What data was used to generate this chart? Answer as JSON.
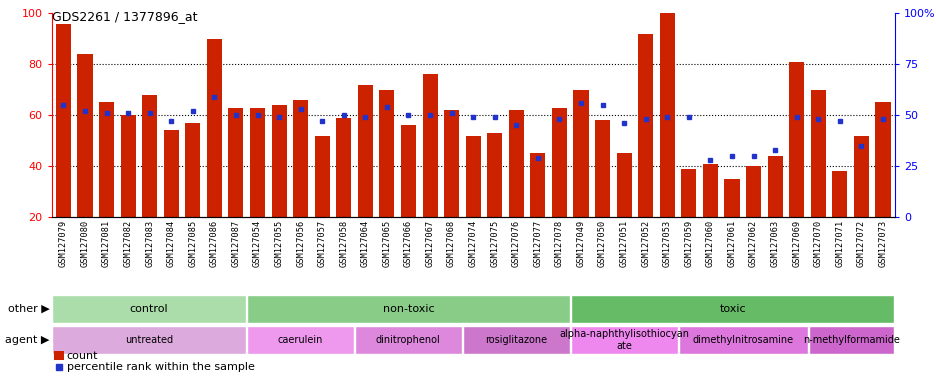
{
  "title": "GDS2261 / 1377896_at",
  "samples": [
    "GSM127079",
    "GSM127080",
    "GSM127081",
    "GSM127082",
    "GSM127083",
    "GSM127084",
    "GSM127085",
    "GSM127086",
    "GSM127087",
    "GSM127054",
    "GSM127055",
    "GSM127056",
    "GSM127057",
    "GSM127058",
    "GSM127064",
    "GSM127065",
    "GSM127066",
    "GSM127067",
    "GSM127068",
    "GSM127074",
    "GSM127075",
    "GSM127076",
    "GSM127077",
    "GSM127078",
    "GSM127049",
    "GSM127050",
    "GSM127051",
    "GSM127052",
    "GSM127053",
    "GSM127059",
    "GSM127060",
    "GSM127061",
    "GSM127062",
    "GSM127063",
    "GSM127069",
    "GSM127070",
    "GSM127071",
    "GSM127072",
    "GSM127073"
  ],
  "counts": [
    96,
    84,
    65,
    60,
    68,
    54,
    57,
    90,
    63,
    63,
    64,
    66,
    52,
    59,
    72,
    70,
    56,
    76,
    62,
    52,
    53,
    62,
    45,
    63,
    70,
    58,
    45,
    92,
    100,
    39,
    41,
    35,
    40,
    44,
    81,
    70,
    38,
    52,
    65
  ],
  "percentiles": [
    55,
    52,
    51,
    51,
    51,
    47,
    52,
    59,
    50,
    50,
    49,
    53,
    47,
    50,
    49,
    54,
    50,
    50,
    51,
    49,
    49,
    45,
    29,
    48,
    56,
    55,
    46,
    48,
    49,
    49,
    28,
    30,
    30,
    33,
    49,
    48,
    47,
    35,
    48
  ],
  "bar_color": "#CC2200",
  "blue_color": "#2233CC",
  "groups_other": [
    {
      "label": "control",
      "start": 0,
      "end": 9,
      "color": "#AADDAA"
    },
    {
      "label": "non-toxic",
      "start": 9,
      "end": 24,
      "color": "#88CC88"
    },
    {
      "label": "toxic",
      "start": 24,
      "end": 39,
      "color": "#66BB66"
    }
  ],
  "groups_agent": [
    {
      "label": "untreated",
      "start": 0,
      "end": 9,
      "color": "#DDAADD"
    },
    {
      "label": "caerulein",
      "start": 9,
      "end": 14,
      "color": "#EE99EE"
    },
    {
      "label": "dinitrophenol",
      "start": 14,
      "end": 19,
      "color": "#DD88DD"
    },
    {
      "label": "rosiglitazone",
      "start": 19,
      "end": 24,
      "color": "#CC77CC"
    },
    {
      "label": "alpha-naphthylisothiocyan\nate",
      "start": 24,
      "end": 29,
      "color": "#EE88EE"
    },
    {
      "label": "dimethylnitrosamine",
      "start": 29,
      "end": 35,
      "color": "#DD77DD"
    },
    {
      "label": "n-methylformamide",
      "start": 35,
      "end": 39,
      "color": "#CC66CC"
    }
  ],
  "ylim_left": [
    20,
    100
  ],
  "ylim_right": [
    0,
    100
  ],
  "yticks_left": [
    20,
    40,
    60,
    80,
    100
  ],
  "yticks_right": [
    0,
    25,
    50,
    75,
    100
  ],
  "ytick_labels_right": [
    "0",
    "25",
    "50",
    "75",
    "100%"
  ]
}
